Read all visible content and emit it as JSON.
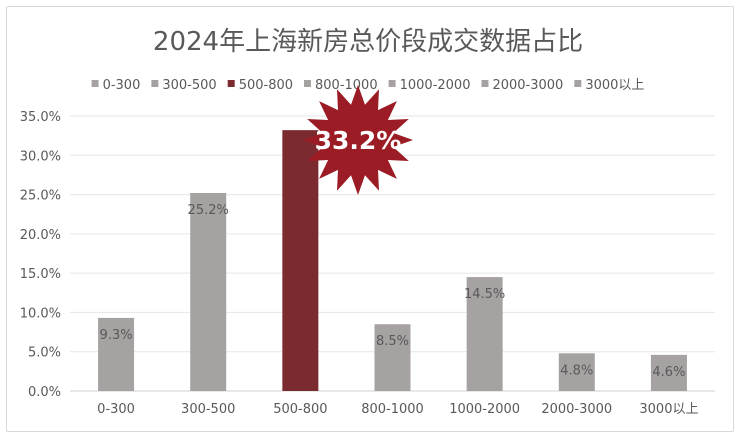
{
  "chart_data": {
    "type": "bar",
    "title": "2024年上海新房总价段成交数据占比",
    "categories": [
      "0-300",
      "300-500",
      "500-800",
      "800-1000",
      "1000-2000",
      "2000-3000",
      "3000以上"
    ],
    "series": [
      {
        "values": [
          9.3,
          25.2,
          33.2,
          8.5,
          14.5,
          4.8,
          4.6
        ],
        "data_labels": [
          "9.3%",
          "25.2%",
          "33.2%",
          "8.5%",
          "14.5%",
          "4.8%",
          "4.6%"
        ]
      }
    ],
    "legend": [
      "0-300",
      "300-500",
      "500-800",
      "800-1000",
      "1000-2000",
      "2000-3000",
      "3000以上"
    ],
    "legend_position": "top",
    "ylim": [
      0,
      35
    ],
    "y_ticks": [
      "0.0%",
      "5.0%",
      "10.0%",
      "15.0%",
      "20.0%",
      "25.0%",
      "30.0%",
      "35.0%"
    ],
    "grid": true,
    "highlight_index": 2,
    "callout_label": "33.2%",
    "colors": {
      "bar": "#a6a2a2",
      "highlight": "#7b2b30",
      "callout": "#9b1c24",
      "grid": "#e6e6e6",
      "text": "#595959"
    }
  }
}
